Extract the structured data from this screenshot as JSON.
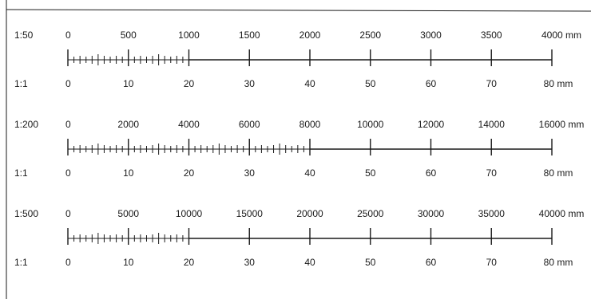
{
  "scales": [
    {
      "ratio_label": "1:50",
      "top_ticks": [
        "0",
        "500",
        "1000",
        "1500",
        "2000",
        "2500",
        "3000",
        "3500",
        "4000 mm"
      ],
      "fine_until_major": 2,
      "base_label": "1:1",
      "bottom_ticks": [
        "0",
        "10",
        "20",
        "30",
        "40",
        "50",
        "60",
        "70",
        "80 mm"
      ]
    },
    {
      "ratio_label": "1:200",
      "top_ticks": [
        "0",
        "2000",
        "4000",
        "6000",
        "8000",
        "10000",
        "12000",
        "14000",
        "16000 mm"
      ],
      "fine_until_major": 4,
      "base_label": "1:1",
      "bottom_ticks": [
        "0",
        "10",
        "20",
        "30",
        "40",
        "50",
        "60",
        "70",
        "80 mm"
      ]
    },
    {
      "ratio_label": "1:500",
      "top_ticks": [
        "0",
        "5000",
        "10000",
        "15000",
        "20000",
        "25000",
        "30000",
        "35000",
        "40000 mm"
      ],
      "fine_until_major": 2,
      "base_label": "1:1",
      "bottom_ticks": [
        "0",
        "10",
        "20",
        "30",
        "40",
        "50",
        "60",
        "70",
        "80 mm"
      ]
    }
  ]
}
